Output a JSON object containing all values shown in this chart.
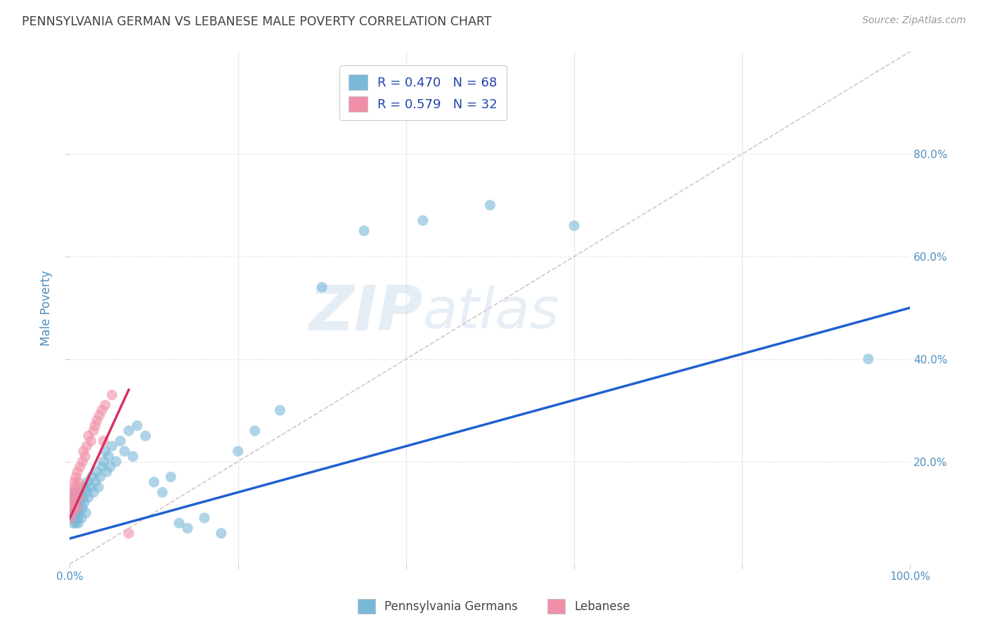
{
  "title": "PENNSYLVANIA GERMAN VS LEBANESE MALE POVERTY CORRELATION CHART",
  "source": "Source: ZipAtlas.com",
  "ylabel": "Male Poverty",
  "xlim": [
    0,
    1.0
  ],
  "ylim": [
    0,
    1.0
  ],
  "xticks": [
    0.0,
    0.2,
    0.4,
    0.6,
    0.8,
    1.0
  ],
  "xticklabels": [
    "0.0%",
    "",
    "",
    "",
    "",
    "100.0%"
  ],
  "yticks_right": [
    0.2,
    0.4,
    0.6,
    0.8
  ],
  "yticklabels_right": [
    "20.0%",
    "40.0%",
    "60.0%",
    "80.0%"
  ],
  "legend_items": [
    {
      "label": "R = 0.470   N = 68",
      "color": "#a8c8e8"
    },
    {
      "label": "R = 0.579   N = 32",
      "color": "#f4b0c0"
    }
  ],
  "legend_bottom": [
    {
      "label": "Pennsylvania Germans",
      "color": "#a8c8e8"
    },
    {
      "label": "Lebanese",
      "color": "#f4b0c0"
    }
  ],
  "pa_german_x": [
    0.001,
    0.002,
    0.003,
    0.003,
    0.004,
    0.004,
    0.005,
    0.005,
    0.006,
    0.006,
    0.007,
    0.007,
    0.008,
    0.008,
    0.009,
    0.009,
    0.01,
    0.01,
    0.011,
    0.011,
    0.012,
    0.013,
    0.014,
    0.015,
    0.016,
    0.017,
    0.018,
    0.019,
    0.02,
    0.021,
    0.022,
    0.024,
    0.026,
    0.028,
    0.03,
    0.032,
    0.034,
    0.036,
    0.038,
    0.04,
    0.042,
    0.044,
    0.046,
    0.048,
    0.05,
    0.055,
    0.06,
    0.065,
    0.07,
    0.075,
    0.08,
    0.09,
    0.1,
    0.11,
    0.12,
    0.13,
    0.14,
    0.16,
    0.18,
    0.2,
    0.22,
    0.25,
    0.3,
    0.35,
    0.42,
    0.5,
    0.6,
    0.95
  ],
  "pa_german_y": [
    0.1,
    0.12,
    0.09,
    0.13,
    0.08,
    0.11,
    0.1,
    0.14,
    0.09,
    0.12,
    0.08,
    0.11,
    0.1,
    0.13,
    0.09,
    0.12,
    0.08,
    0.11,
    0.1,
    0.13,
    0.12,
    0.14,
    0.09,
    0.11,
    0.13,
    0.12,
    0.15,
    0.1,
    0.14,
    0.16,
    0.13,
    0.15,
    0.17,
    0.14,
    0.16,
    0.18,
    0.15,
    0.17,
    0.19,
    0.2,
    0.22,
    0.18,
    0.21,
    0.19,
    0.23,
    0.2,
    0.24,
    0.22,
    0.26,
    0.21,
    0.27,
    0.25,
    0.16,
    0.14,
    0.17,
    0.08,
    0.07,
    0.09,
    0.06,
    0.22,
    0.26,
    0.3,
    0.54,
    0.65,
    0.67,
    0.7,
    0.66,
    0.4
  ],
  "lebanese_x": [
    0.001,
    0.002,
    0.003,
    0.003,
    0.004,
    0.005,
    0.005,
    0.006,
    0.006,
    0.007,
    0.007,
    0.008,
    0.009,
    0.01,
    0.011,
    0.012,
    0.013,
    0.015,
    0.016,
    0.018,
    0.02,
    0.022,
    0.025,
    0.028,
    0.03,
    0.032,
    0.035,
    0.038,
    0.04,
    0.042,
    0.05,
    0.07
  ],
  "lebanese_y": [
    0.09,
    0.12,
    0.1,
    0.14,
    0.11,
    0.13,
    0.16,
    0.12,
    0.15,
    0.14,
    0.17,
    0.11,
    0.18,
    0.16,
    0.13,
    0.19,
    0.15,
    0.2,
    0.22,
    0.21,
    0.23,
    0.25,
    0.24,
    0.26,
    0.27,
    0.28,
    0.29,
    0.3,
    0.24,
    0.31,
    0.33,
    0.06
  ],
  "pa_line_start_x": 0.0,
  "pa_line_end_x": 1.0,
  "pa_line_start_y": 0.05,
  "pa_line_end_y": 0.5,
  "leb_line_start_x": 0.0,
  "leb_line_end_x": 0.07,
  "leb_line_start_y": 0.09,
  "leb_line_end_y": 0.34,
  "watermark_zip": "ZIP",
  "watermark_atlas": "atlas",
  "pa_color": "#7ab8d8",
  "leb_color": "#f090a8",
  "pa_line_color": "#2060d0",
  "leb_line_color": "#d83060",
  "diagonal_color": "#d0c8c8",
  "grid_color": "#e8e8e8",
  "background_color": "#ffffff",
  "title_color": "#404040",
  "axis_label_color": "#5090c0",
  "tick_color": "#5090c0"
}
